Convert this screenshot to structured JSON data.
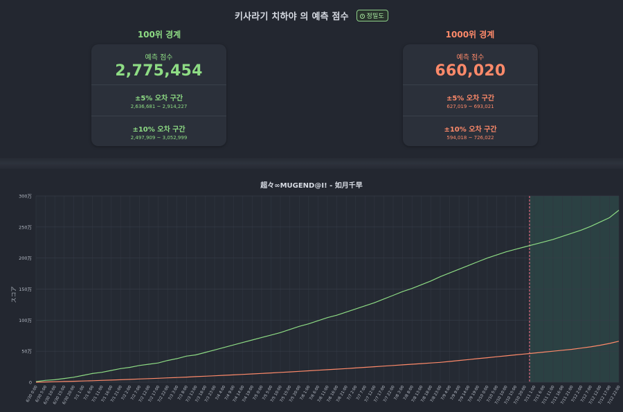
{
  "header": {
    "title": "키사라기 치하야 의 예측 점수",
    "badge_label": "정밀도",
    "badge_icon": "clock-icon"
  },
  "cards": [
    {
      "heading": "100위 경계",
      "score_label": "예측 점수",
      "score": "2,775,454",
      "band5_label": "±5% 오차 구간",
      "band5_range": "2,636,681 ~ 2,914,227",
      "band10_label": "±10% 오차 구간",
      "band10_range": "2,497,909 ~ 3,052,999",
      "color": "#8edc84"
    },
    {
      "heading": "1000위 경계",
      "score_label": "예측 점수",
      "score": "660,020",
      "band5_label": "±5% 오차 구간",
      "band5_range": "627,019 ~ 693,021",
      "band10_label": "±10% 오차 구간",
      "band10_range": "594,018 ~ 726,022",
      "color": "#ff8a6a"
    }
  ],
  "chart_data": {
    "type": "line",
    "title": "超々∞MUGEND@I! - 如月千早",
    "ylabel": "スコア",
    "xlabel": "",
    "ylim": [
      0,
      300
    ],
    "y_ticks": [
      "0",
      "50万",
      "100万",
      "150万",
      "200万",
      "250万",
      "300万"
    ],
    "grid": true,
    "x_ticks": [
      "6/30 0:00",
      "6/30 5:00",
      "6/30 10:00",
      "6/30 15:00",
      "6/30 20:00",
      "7/1 1:00",
      "7/1 6:00",
      "7/1 11:00",
      "7/1 16:00",
      "7/1 21:00",
      "7/2 2:00",
      "7/2 7:00",
      "7/2 12:00",
      "7/2 17:00",
      "7/2 22:00",
      "7/3 3:00",
      "7/3 8:00",
      "7/3 13:00",
      "7/3 18:00",
      "7/3 23:00",
      "7/4 4:00",
      "7/4 9:00",
      "7/4 14:00",
      "7/4 19:00",
      "7/5 0:00",
      "7/5 5:00",
      "7/5 10:00",
      "7/5 15:00",
      "7/5 20:00",
      "7/6 1:00",
      "7/6 6:00",
      "7/6 11:00",
      "7/6 16:00",
      "7/6 21:00",
      "7/7 2:00",
      "7/7 7:00",
      "7/7 12:00",
      "7/7 17:00",
      "7/7 22:00",
      "7/8 3:00",
      "7/8 8:00",
      "7/8 13:00",
      "7/8 18:00",
      "7/8 23:00",
      "7/9 4:00",
      "7/9 9:00",
      "7/9 14:00",
      "7/9 19:00",
      "7/10 0:00",
      "7/10 5:00",
      "7/10 10:00",
      "7/10 15:00",
      "7/10 20:00",
      "7/11 1:00",
      "7/11 6:00",
      "7/11 11:00",
      "7/11 16:00",
      "7/11 21:00",
      "7/12 2:00",
      "7/12 7:00",
      "7/12 12:00",
      "7/12 17:00",
      "7/12 22:00"
    ],
    "forecast_start_index": 52.5,
    "series": [
      {
        "name": "",
        "color": "#8edc84",
        "values": [
          1,
          3,
          4,
          6,
          8,
          11,
          14,
          16,
          19,
          22,
          24,
          27,
          29,
          31,
          35,
          38,
          42,
          44,
          48,
          52,
          56,
          60,
          64,
          68,
          72,
          76,
          80,
          85,
          90,
          94,
          99,
          104,
          108,
          113,
          118,
          123,
          128,
          134,
          140,
          146,
          151,
          157,
          163,
          170,
          176,
          182,
          188,
          194,
          200,
          205,
          210,
          214,
          218,
          222,
          226,
          230,
          235,
          240,
          245,
          251,
          258,
          265,
          277
        ]
      },
      {
        "name": "",
        "color": "#ff8a6a",
        "values": [
          0,
          0.4,
          0.8,
          1.2,
          1.6,
          2,
          2.5,
          3,
          3.5,
          4,
          4.6,
          5.2,
          5.8,
          6.4,
          7,
          7.6,
          8.3,
          9,
          9.7,
          10.4,
          11.1,
          11.8,
          12.6,
          13.4,
          14.2,
          15,
          15.8,
          16.6,
          17.5,
          18.4,
          19.3,
          20.2,
          21.1,
          22,
          23,
          24,
          25,
          26,
          27,
          28,
          29,
          30,
          31,
          32,
          33.5,
          35,
          36.5,
          38,
          39.5,
          41,
          42.5,
          44,
          45.5,
          47,
          48.5,
          50,
          51.5,
          53,
          55,
          57,
          59.5,
          62.5,
          66
        ]
      }
    ]
  }
}
